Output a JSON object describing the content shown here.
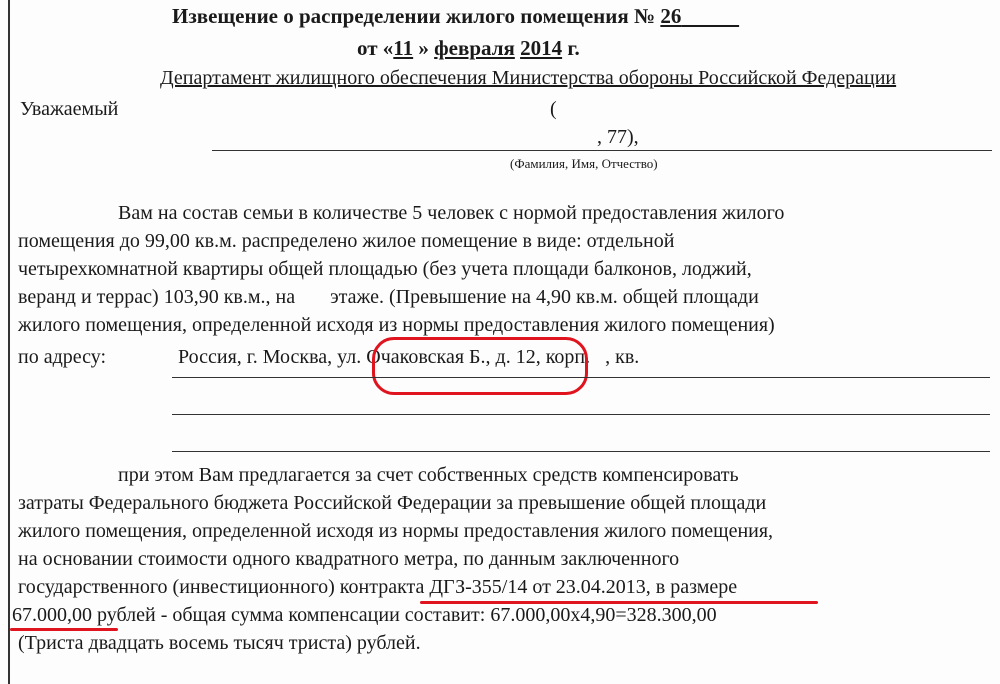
{
  "header": {
    "title": "Извещение о распределении жилого помещения №",
    "number": "26",
    "date_prefix": "от «",
    "day": "11",
    "date_mid": "»",
    "month": "февраля",
    "year": "2014",
    "year_suffix": "г.",
    "department": "Департамент жилищного обеспечения Министерства обороны Российской Федерации"
  },
  "addressee": {
    "salutation": "Уважаемый",
    "paren_open": "(",
    "fragment": ", 77),",
    "caption": "(Фамилия, Имя, Отчество)"
  },
  "para1": [
    "Вам на состав семьи в количестве 5 человек с нормой предоставления жилого",
    "помещения до 99,00 кв.м. распределено жилое помещение в виде: отдельной",
    "четырехкомнатной квартиры общей площадью (без учета площади балконов, лоджий,",
    "веранд и террас) 103,90 кв.м., на       этаже. (Превышение на 4,90 кв.м. общей площади",
    "жилого помещения, определенной исходя из нормы предоставления жилого помещения)"
  ],
  "address": {
    "label": "по адресу:",
    "value": "Россия, г. Москва, ул. Очаковская Б., д. 12, корп.   , кв."
  },
  "para2": [
    "при этом Вам предлагается за счет собственных средств компенсировать",
    "затраты Федерального бюджета Российской Федерации за превышение общей площади",
    "жилого помещения, определенной исходя из нормы предоставления жилого помещения,",
    "на основании стоимости одного квадратного метра, по данным заключенного",
    "государственного (инвестиционного) контракта ДГЗ-355/14 от 23.04.2013, в размере",
    "67.000,00 рублей - общая сумма компенсации составит: 67.000,00х4,90=328.300,00",
    "(Триста двадцать восемь тысяч триста) рублей."
  ],
  "highlight_color": "#e0141e"
}
